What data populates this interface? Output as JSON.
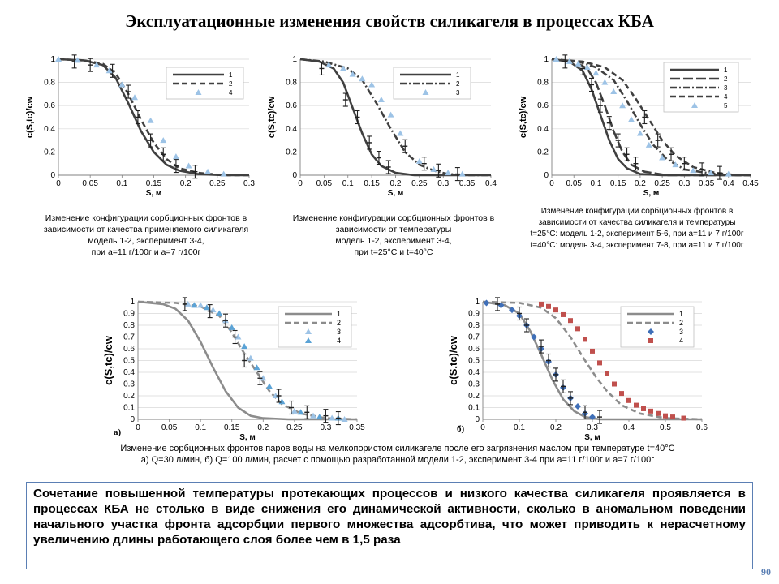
{
  "title": "Эксплуатационные изменения свойств силикагеля в процессах КБА",
  "captions": {
    "c1": [
      "Изменение конфигурации сорбционных фронтов в",
      "зависимости от качества применяемого силикагеля",
      "модель 1-2, эксперимент 3-4,",
      "при a=11 г/100г и a=7 г/100г"
    ],
    "c2": [
      "Изменение конфигурации сорбционных фронтов в",
      "зависимости от температуры",
      "модель 1-2, эксперимент 3-4,",
      "при t=25°С и t=40°С"
    ],
    "c3": [
      "Изменение конфигурации сорбционных фронтов в",
      "зависимости от качества силикагеля и температуры",
      "t=25°С: модель 1-2, эксперимент 5-6, при a=11 и 7 г/100г",
      "t=40°С: модель 3-4, эксперимент 7-8, при a=11 и 7 г/100г"
    ],
    "bottom": [
      "Изменение сорбционных фронтов паров воды на мелкопористом силикагеле после его загрязнения маслом при температуре t=40°С",
      "а) Q=30 л/мин, б) Q=100 л/мин, расчет с помощью разработанной модели 1-2, эксперимент 3-4 при a=11 г/100г и a=7 г/100г"
    ]
  },
  "panel_labels": {
    "a": "а)",
    "b": "б)"
  },
  "summary": "Сочетание повышенной температуры протекающих процессов и низкого качества силикагеля проявляется в процессах КБА не столько в виде снижения его динамической активности, сколько в аномальном поведении начального участка фронта адсорбции первого множества адсорбтива, что может приводить к нерасчетному увеличению длины работающего слоя более чем в 1,5 раза",
  "page_number": "90",
  "colors": {
    "dark": "#404040",
    "gray": "#8c8c8c",
    "light_blue": "#9dc3e6",
    "blue_marker": "#3f6fb8",
    "red_marker": "#c0504d",
    "accent": "#5b7fb4"
  },
  "chart_data": [
    {
      "type": "line",
      "ylabel": "c(S,tc)/cw",
      "xlabel": "S, м",
      "xlim": [
        0,
        0.3
      ],
      "ylim": [
        0,
        1
      ],
      "xticks": [
        "0",
        "0.05",
        "0.1",
        "0.15",
        "0.2",
        "0.25",
        "0.3"
      ],
      "yticks": [
        "0",
        "0.2",
        "0.4",
        "0.6",
        "0.8",
        "1"
      ],
      "legend": "top-right",
      "series": [
        {
          "name": "1",
          "style": "solid",
          "color": "#404040",
          "x": [
            0,
            0.04,
            0.07,
            0.09,
            0.11,
            0.13,
            0.15,
            0.17,
            0.19,
            0.22,
            0.26,
            0.3
          ],
          "y": [
            1,
            0.99,
            0.95,
            0.84,
            0.62,
            0.38,
            0.2,
            0.09,
            0.04,
            0.01,
            0,
            0
          ]
        },
        {
          "name": "2",
          "style": "dash",
          "color": "#404040",
          "x": [
            0,
            0.04,
            0.07,
            0.09,
            0.11,
            0.13,
            0.15,
            0.17,
            0.19,
            0.22,
            0.26,
            0.3
          ],
          "y": [
            1,
            0.99,
            0.96,
            0.88,
            0.7,
            0.48,
            0.28,
            0.14,
            0.06,
            0.02,
            0,
            0
          ]
        },
        {
          "name": "3",
          "style": "errorbar",
          "color": "#404040",
          "x": [
            0.025,
            0.05,
            0.085,
            0.11,
            0.125,
            0.145,
            0.165,
            0.185,
            0.215
          ],
          "y": [
            0.98,
            0.95,
            0.9,
            0.72,
            0.5,
            0.3,
            0.18,
            0.08,
            0.03
          ]
        },
        {
          "name": "4",
          "style": "marker",
          "color": "#9dc3e6",
          "x": [
            0,
            0.03,
            0.06,
            0.08,
            0.1,
            0.12,
            0.145,
            0.165,
            0.185,
            0.205,
            0.235,
            0.26
          ],
          "y": [
            1,
            0.99,
            0.95,
            0.9,
            0.78,
            0.67,
            0.47,
            0.3,
            0.16,
            0.08,
            0.03,
            0.01
          ]
        }
      ]
    },
    {
      "type": "line",
      "ylabel": "c(S,tc)/cw",
      "xlabel": "S, м",
      "xlim": [
        0,
        0.4
      ],
      "ylim": [
        0,
        1
      ],
      "xticks": [
        "0",
        "0.05",
        "0.1",
        "0.15",
        "0.2",
        "0.25",
        "0.3",
        "0.35",
        "0.4"
      ],
      "yticks": [
        "0",
        "0.2",
        "0.4",
        "0.6",
        "0.8",
        "1"
      ],
      "legend": "top-right",
      "series": [
        {
          "name": "1",
          "style": "solid",
          "color": "#404040",
          "x": [
            0,
            0.04,
            0.07,
            0.09,
            0.11,
            0.13,
            0.15,
            0.17,
            0.2,
            0.24,
            0.3,
            0.4
          ],
          "y": [
            1,
            0.98,
            0.92,
            0.8,
            0.58,
            0.36,
            0.18,
            0.08,
            0.02,
            0,
            0,
            0
          ]
        },
        {
          "name": "2",
          "style": "dashdot",
          "color": "#404040",
          "x": [
            0,
            0.05,
            0.1,
            0.13,
            0.16,
            0.19,
            0.22,
            0.25,
            0.28,
            0.31,
            0.35,
            0.4
          ],
          "y": [
            1,
            0.98,
            0.92,
            0.82,
            0.62,
            0.4,
            0.2,
            0.09,
            0.04,
            0.01,
            0,
            0
          ]
        },
        {
          "name": "3",
          "style": "marker",
          "color": "#9dc3e6",
          "x": [
            0.06,
            0.09,
            0.11,
            0.13,
            0.15,
            0.17,
            0.19,
            0.21,
            0.25,
            0.28,
            0.31,
            0.34
          ],
          "y": [
            0.95,
            0.92,
            0.87,
            0.83,
            0.78,
            0.65,
            0.52,
            0.36,
            0.12,
            0.05,
            0.02,
            0.01
          ]
        },
        {
          "name": "err",
          "style": "errorbar",
          "color": "#404040",
          "x": [
            0.045,
            0.095,
            0.12,
            0.145,
            0.165,
            0.185,
            0.22,
            0.26,
            0.29,
            0.33
          ],
          "y": [
            0.92,
            0.65,
            0.5,
            0.28,
            0.15,
            0.07,
            0.25,
            0.1,
            0.04,
            0.01
          ]
        }
      ]
    },
    {
      "type": "line",
      "ylabel": "c(S,tc)/cw",
      "xlabel": "S, м",
      "xlim": [
        0,
        0.45
      ],
      "ylim": [
        0,
        1
      ],
      "xticks": [
        "0",
        "0.05",
        "0.1",
        "0.15",
        "0.2",
        "0.25",
        "0.3",
        "0.35",
        "0.4",
        "0.45"
      ],
      "yticks": [
        "0",
        "0.2",
        "0.4",
        "0.6",
        "0.8",
        "1"
      ],
      "legend": "top-right",
      "series": [
        {
          "name": "1",
          "style": "solid",
          "color": "#404040",
          "x": [
            0,
            0.04,
            0.07,
            0.09,
            0.11,
            0.13,
            0.15,
            0.17,
            0.2,
            0.25,
            0.3,
            0.45
          ],
          "y": [
            1,
            0.98,
            0.9,
            0.74,
            0.52,
            0.3,
            0.14,
            0.06,
            0.01,
            0,
            0,
            0
          ]
        },
        {
          "name": "2",
          "style": "longdash",
          "color": "#404040",
          "x": [
            0,
            0.05,
            0.08,
            0.1,
            0.12,
            0.14,
            0.16,
            0.18,
            0.21,
            0.26,
            0.32,
            0.45
          ],
          "y": [
            1,
            0.98,
            0.92,
            0.8,
            0.6,
            0.38,
            0.2,
            0.09,
            0.03,
            0,
            0,
            0
          ]
        },
        {
          "name": "3",
          "style": "dashdot",
          "color": "#404040",
          "x": [
            0,
            0.06,
            0.1,
            0.14,
            0.17,
            0.2,
            0.23,
            0.26,
            0.3,
            0.35,
            0.4,
            0.45
          ],
          "y": [
            1,
            0.98,
            0.93,
            0.82,
            0.64,
            0.44,
            0.26,
            0.14,
            0.05,
            0.02,
            0,
            0
          ]
        },
        {
          "name": "4",
          "style": "dash",
          "color": "#404040",
          "x": [
            0,
            0.07,
            0.12,
            0.16,
            0.19,
            0.22,
            0.25,
            0.28,
            0.32,
            0.37,
            0.42,
            0.45
          ],
          "y": [
            1,
            0.98,
            0.93,
            0.82,
            0.66,
            0.48,
            0.3,
            0.17,
            0.07,
            0.02,
            0,
            0
          ]
        },
        {
          "name": "5",
          "style": "marker",
          "color": "#9dc3e6",
          "x": [
            0.01,
            0.04,
            0.06,
            0.08,
            0.1,
            0.12,
            0.14,
            0.16,
            0.18,
            0.2,
            0.22,
            0.25,
            0.28,
            0.32,
            0.36,
            0.4
          ],
          "y": [
            1,
            0.98,
            0.96,
            0.93,
            0.88,
            0.8,
            0.72,
            0.6,
            0.48,
            0.36,
            0.26,
            0.15,
            0.09,
            0.04,
            0.02,
            0.01
          ]
        },
        {
          "name": "err",
          "style": "errorbar",
          "color": "#404040",
          "x": [
            0.03,
            0.07,
            0.09,
            0.11,
            0.13,
            0.15,
            0.17,
            0.19,
            0.21,
            0.24,
            0.27,
            0.3,
            0.34,
            0.38
          ],
          "y": [
            0.98,
            0.92,
            0.78,
            0.6,
            0.45,
            0.3,
            0.18,
            0.1,
            0.5,
            0.3,
            0.18,
            0.1,
            0.05,
            0.02
          ]
        }
      ]
    },
    {
      "type": "line",
      "ylabel": "c(S,tc)/cw",
      "xlabel": "S, м",
      "xlim": [
        0,
        0.35
      ],
      "ylim": [
        0,
        1
      ],
      "xticks": [
        "0",
        "0.05",
        "0.1",
        "0.15",
        "0.2",
        "0.25",
        "0.3",
        "0.35"
      ],
      "yticks": [
        "0",
        "0.1",
        "0.2",
        "0.3",
        "0.4",
        "0.5",
        "0.6",
        "0.7",
        "0.8",
        "0.9",
        "1"
      ],
      "legend": "top-right",
      "series": [
        {
          "name": "1",
          "style": "solid",
          "color": "#8c8c8c",
          "x": [
            0,
            0.04,
            0.06,
            0.08,
            0.1,
            0.12,
            0.14,
            0.16,
            0.18,
            0.2,
            0.24,
            0.35
          ],
          "y": [
            1,
            0.98,
            0.94,
            0.84,
            0.66,
            0.44,
            0.24,
            0.1,
            0.03,
            0.01,
            0,
            0
          ]
        },
        {
          "name": "2",
          "style": "dash",
          "color": "#8c8c8c",
          "x": [
            0,
            0.06,
            0.1,
            0.13,
            0.15,
            0.17,
            0.19,
            0.21,
            0.23,
            0.26,
            0.3,
            0.35
          ],
          "y": [
            1,
            0.99,
            0.96,
            0.88,
            0.74,
            0.56,
            0.4,
            0.24,
            0.13,
            0.05,
            0.01,
            0
          ]
        },
        {
          "name": "3",
          "style": "marker",
          "color": "#9dc3e6",
          "x": [
            0.08,
            0.1,
            0.12,
            0.14,
            0.16,
            0.18,
            0.2,
            0.22,
            0.25,
            0.28,
            0.31,
            0.33
          ],
          "y": [
            0.98,
            0.97,
            0.93,
            0.84,
            0.7,
            0.52,
            0.35,
            0.2,
            0.07,
            0.03,
            0.01,
            0
          ]
        },
        {
          "name": "4",
          "style": "marker",
          "color": "#5ba3d6",
          "x": [
            0.09,
            0.11,
            0.13,
            0.15,
            0.17,
            0.19,
            0.21,
            0.23,
            0.26,
            0.29,
            0.32
          ],
          "y": [
            0.97,
            0.95,
            0.9,
            0.78,
            0.62,
            0.44,
            0.28,
            0.15,
            0.06,
            0.02,
            0.01
          ]
        },
        {
          "name": "err",
          "style": "errorbar",
          "color": "#404040",
          "x": [
            0.075,
            0.115,
            0.14,
            0.155,
            0.17,
            0.195,
            0.225,
            0.245,
            0.27,
            0.3,
            0.32
          ],
          "y": [
            0.98,
            0.92,
            0.84,
            0.7,
            0.5,
            0.35,
            0.2,
            0.1,
            0.06,
            0.03,
            0.01
          ]
        }
      ]
    },
    {
      "type": "line",
      "ylabel": "c(S,tc)/cw",
      "xlabel": "S, м",
      "xlim": [
        0,
        0.6
      ],
      "ylim": [
        0,
        1
      ],
      "xticks": [
        "0",
        "0.1",
        "0.2",
        "0.3",
        "0.4",
        "0.5",
        "0.6"
      ],
      "yticks": [
        "0",
        "0.1",
        "0.2",
        "0.3",
        "0.4",
        "0.5",
        "0.6",
        "0.7",
        "0.8",
        "0.9",
        "1"
      ],
      "legend": "top-right",
      "series": [
        {
          "name": "1",
          "style": "solid",
          "color": "#8c8c8c",
          "x": [
            0,
            0.06,
            0.1,
            0.13,
            0.16,
            0.19,
            0.22,
            0.25,
            0.28,
            0.32,
            0.4,
            0.6
          ],
          "y": [
            1,
            0.97,
            0.9,
            0.75,
            0.55,
            0.34,
            0.17,
            0.07,
            0.02,
            0,
            0,
            0
          ]
        },
        {
          "name": "2",
          "style": "dash",
          "color": "#8c8c8c",
          "x": [
            0,
            0.1,
            0.16,
            0.2,
            0.24,
            0.28,
            0.31,
            0.34,
            0.38,
            0.43,
            0.5,
            0.6
          ],
          "y": [
            1,
            0.99,
            0.95,
            0.86,
            0.7,
            0.5,
            0.36,
            0.24,
            0.12,
            0.05,
            0.01,
            0
          ]
        },
        {
          "name": "3",
          "style": "marker",
          "color": "#3f6fb8",
          "x": [
            0.01,
            0.05,
            0.08,
            0.1,
            0.12,
            0.14,
            0.16,
            0.18,
            0.2,
            0.22,
            0.24,
            0.26,
            0.28,
            0.3
          ],
          "y": [
            0.99,
            0.97,
            0.93,
            0.88,
            0.8,
            0.7,
            0.6,
            0.49,
            0.38,
            0.27,
            0.18,
            0.11,
            0.05,
            0.02
          ]
        },
        {
          "name": "4",
          "style": "marker",
          "color": "#c0504d",
          "x": [
            0.16,
            0.18,
            0.2,
            0.22,
            0.24,
            0.26,
            0.28,
            0.3,
            0.32,
            0.34,
            0.36,
            0.38,
            0.4,
            0.42,
            0.44,
            0.46,
            0.48,
            0.5,
            0.52,
            0.55
          ],
          "y": [
            0.98,
            0.96,
            0.93,
            0.89,
            0.84,
            0.77,
            0.68,
            0.58,
            0.48,
            0.39,
            0.3,
            0.22,
            0.16,
            0.12,
            0.09,
            0.07,
            0.05,
            0.03,
            0.02,
            0.01
          ]
        },
        {
          "name": "err",
          "style": "errorbar",
          "color": "#404040",
          "x": [
            0.04,
            0.1,
            0.12,
            0.16,
            0.18,
            0.2,
            0.22,
            0.24,
            0.28,
            0.32
          ],
          "y": [
            0.98,
            0.9,
            0.8,
            0.62,
            0.5,
            0.38,
            0.28,
            0.18,
            0.06,
            0.02
          ]
        }
      ]
    }
  ]
}
